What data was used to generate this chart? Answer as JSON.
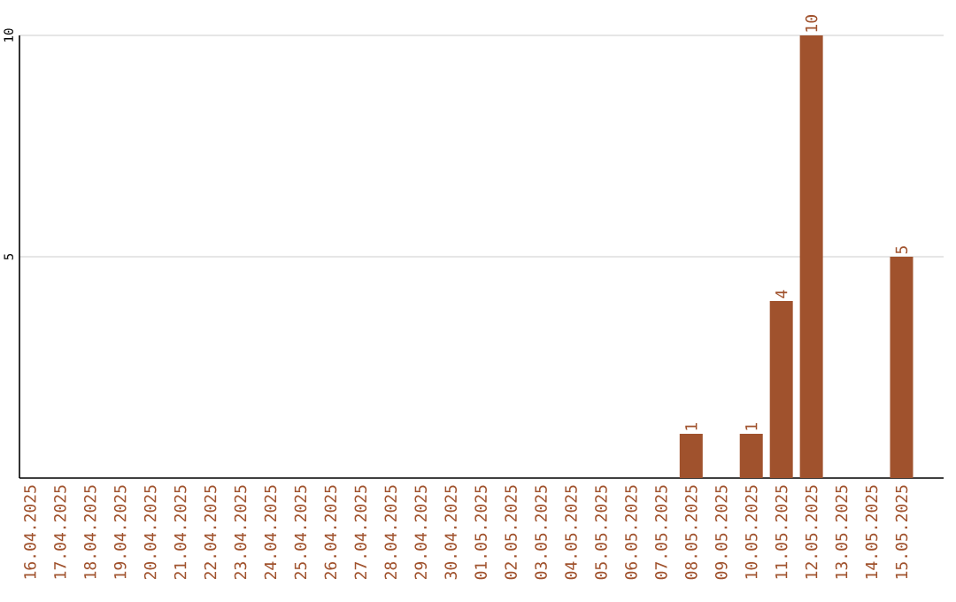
{
  "chart_data": {
    "type": "bar",
    "categories": [
      "16.04.2025",
      "17.04.2025",
      "18.04.2025",
      "19.04.2025",
      "20.04.2025",
      "21.04.2025",
      "22.04.2025",
      "23.04.2025",
      "24.04.2025",
      "25.04.2025",
      "26.04.2025",
      "27.04.2025",
      "28.04.2025",
      "29.04.2025",
      "30.04.2025",
      "01.05.2025",
      "02.05.2025",
      "03.05.2025",
      "04.05.2025",
      "05.05.2025",
      "06.05.2025",
      "07.05.2025",
      "08.05.2025",
      "09.05.2025",
      "10.05.2025",
      "11.05.2025",
      "12.05.2025",
      "13.05.2025",
      "14.05.2025",
      "15.05.2025"
    ],
    "values": [
      0,
      0,
      0,
      0,
      0,
      0,
      0,
      0,
      0,
      0,
      0,
      0,
      0,
      0,
      0,
      0,
      0,
      0,
      0,
      0,
      0,
      0,
      1,
      0,
      1,
      4,
      10,
      0,
      0,
      5
    ],
    "value_labels": [
      null,
      null,
      null,
      null,
      null,
      null,
      null,
      null,
      null,
      null,
      null,
      null,
      null,
      null,
      null,
      null,
      null,
      null,
      null,
      null,
      null,
      null,
      "1",
      null,
      "1",
      "4",
      "10",
      null,
      null,
      "5"
    ],
    "color": "#a0522d",
    "ylim": [
      0,
      10
    ],
    "yticks": [
      5,
      10
    ],
    "grid": "y"
  }
}
